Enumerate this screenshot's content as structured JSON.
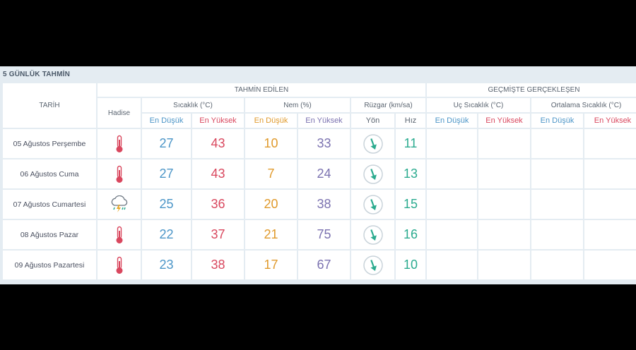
{
  "title": "5 GÜNLÜK TAHMİN",
  "headers": {
    "tarih": "TARİH",
    "hadise": "Hadise",
    "tahmin": "TAHMİN EDİLEN",
    "gecmis": "GEÇMİŞTE GERÇEKLEŞEN",
    "sicaklik": "Sıcaklık (°C)",
    "nem": "Nem (%)",
    "ruzgar": "Rüzgar (km/sa)",
    "uc_sicaklik": "Uç Sıcaklık (°C)",
    "ort_sicaklik": "Ortalama Sıcaklık (°C)",
    "en_dusuk": "En Düşük",
    "en_yuksek": "En Yüksek",
    "yon": "Yön",
    "hiz": "Hız"
  },
  "rows": [
    {
      "date": "05 Ağustos Perşembe",
      "icon": "thermometer-icon",
      "t_min": "27",
      "t_max": "43",
      "h_min": "10",
      "h_max": "33",
      "wind_dir": "south-southeast",
      "wind_speed": "11"
    },
    {
      "date": "06 Ağustos Cuma",
      "icon": "thermometer-icon",
      "t_min": "27",
      "t_max": "43",
      "h_min": "7",
      "h_max": "24",
      "wind_dir": "south-southeast",
      "wind_speed": "13"
    },
    {
      "date": "07 Ağustos Cumartesi",
      "icon": "thunderstorm-icon",
      "t_min": "25",
      "t_max": "36",
      "h_min": "20",
      "h_max": "38",
      "wind_dir": "south-southeast",
      "wind_speed": "15"
    },
    {
      "date": "08 Ağustos Pazar",
      "icon": "thermometer-icon",
      "t_min": "22",
      "t_max": "37",
      "h_min": "21",
      "h_max": "75",
      "wind_dir": "south-southeast",
      "wind_speed": "16"
    },
    {
      "date": "09 Ağustos Pazartesi",
      "icon": "thermometer-icon",
      "t_min": "23",
      "t_max": "38",
      "h_min": "17",
      "h_max": "67",
      "wind_dir": "south-southeast",
      "wind_speed": "10"
    }
  ],
  "colors": {
    "low": "#4b95c7",
    "high": "#d9475e",
    "humidity_low": "#e09a2c",
    "humidity_high": "#7b72b0",
    "wind": "#2bab8f"
  }
}
